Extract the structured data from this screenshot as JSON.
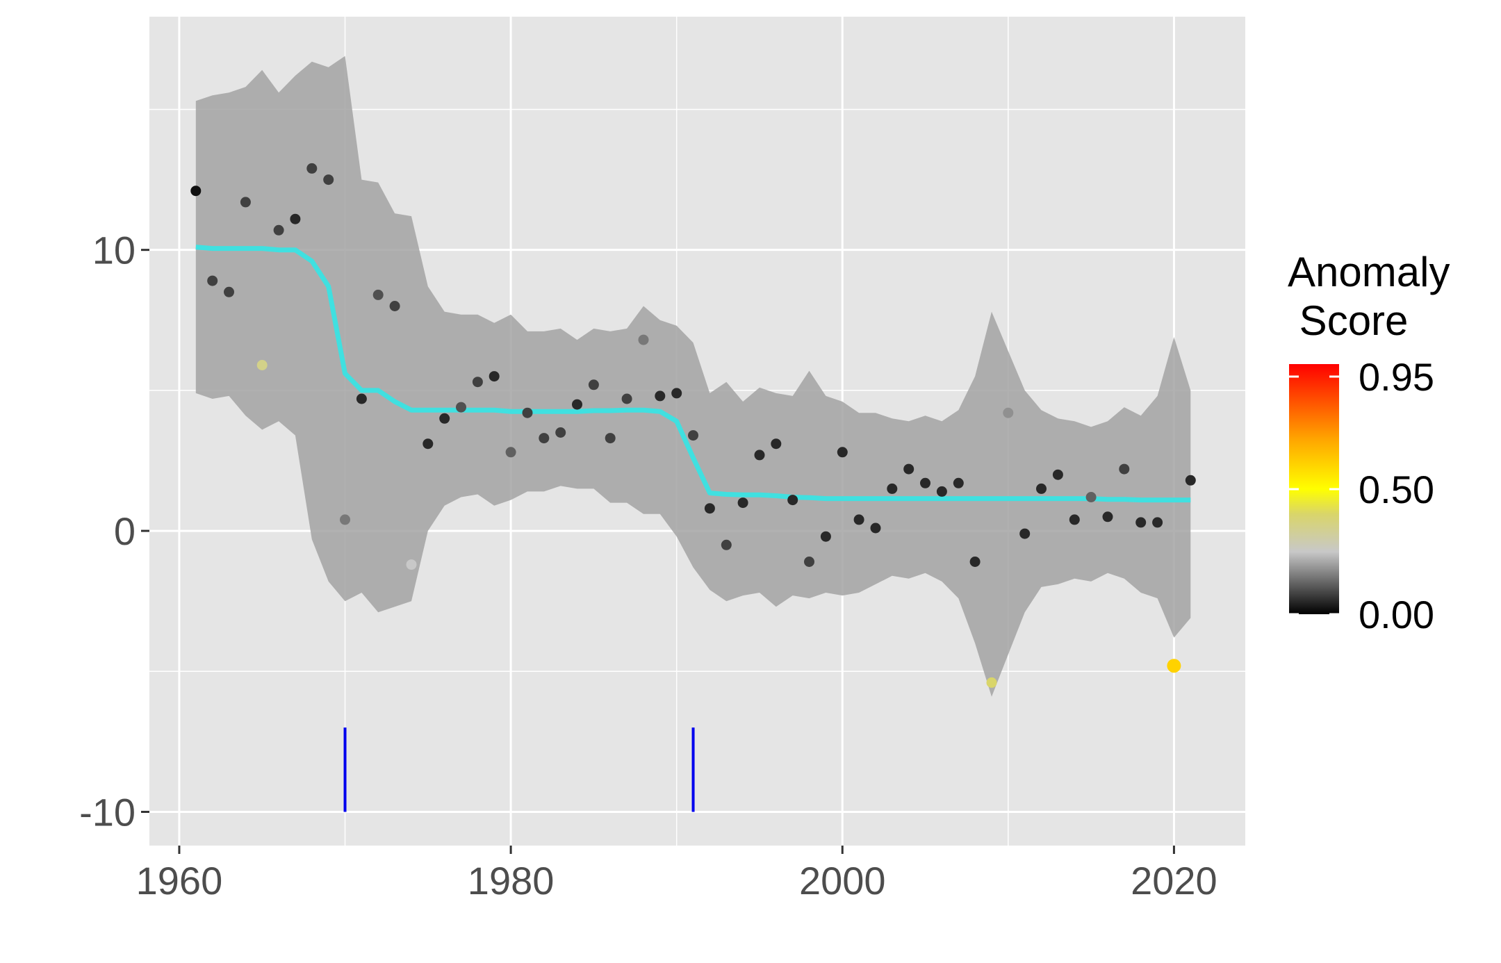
{
  "chart_data": {
    "type": "scatter",
    "title": "",
    "xlabel": "",
    "ylabel": "",
    "xlim": [
      1958.2,
      2024.3
    ],
    "ylim": [
      -11.2,
      18.3
    ],
    "x_ticks": [
      1960,
      1980,
      2000,
      2020
    ],
    "x_tick_labels": [
      "1960",
      "1980",
      "2000",
      "2020"
    ],
    "y_ticks": [
      -10,
      0,
      10
    ],
    "y_tick_labels": [
      "-10",
      "0",
      "10"
    ],
    "grid": true,
    "colors": {
      "panel": "#e5e5e5",
      "grid": "#ffffff",
      "band": "#a3a3a3",
      "trend": "#40e0e0",
      "changepoint": "#0000ee"
    },
    "points": [
      {
        "x": 1961,
        "y": 12.1,
        "score": 0.02
      },
      {
        "x": 1962,
        "y": 8.9,
        "score": 0.08
      },
      {
        "x": 1963,
        "y": 8.5,
        "score": 0.08
      },
      {
        "x": 1964,
        "y": 11.7,
        "score": 0.08
      },
      {
        "x": 1965,
        "y": 5.9,
        "score": 0.35
      },
      {
        "x": 1966,
        "y": 10.7,
        "score": 0.08
      },
      {
        "x": 1967,
        "y": 11.1,
        "score": 0.05
      },
      {
        "x": 1968,
        "y": 12.9,
        "score": 0.08
      },
      {
        "x": 1969,
        "y": 12.5,
        "score": 0.08
      },
      {
        "x": 1970,
        "y": 0.4,
        "score": 0.15
      },
      {
        "x": 1971,
        "y": 4.7,
        "score": 0.05
      },
      {
        "x": 1972,
        "y": 8.4,
        "score": 0.1
      },
      {
        "x": 1973,
        "y": 8.0,
        "score": 0.08
      },
      {
        "x": 1974,
        "y": -1.2,
        "score": 0.25
      },
      {
        "x": 1975,
        "y": 3.1,
        "score": 0.05
      },
      {
        "x": 1976,
        "y": 4.0,
        "score": 0.05
      },
      {
        "x": 1977,
        "y": 4.4,
        "score": 0.1
      },
      {
        "x": 1978,
        "y": 5.3,
        "score": 0.08
      },
      {
        "x": 1979,
        "y": 5.5,
        "score": 0.05
      },
      {
        "x": 1980,
        "y": 2.8,
        "score": 0.12
      },
      {
        "x": 1981,
        "y": 4.2,
        "score": 0.08
      },
      {
        "x": 1982,
        "y": 3.3,
        "score": 0.08
      },
      {
        "x": 1983,
        "y": 3.5,
        "score": 0.08
      },
      {
        "x": 1984,
        "y": 4.5,
        "score": 0.05
      },
      {
        "x": 1985,
        "y": 5.2,
        "score": 0.08
      },
      {
        "x": 1986,
        "y": 3.3,
        "score": 0.08
      },
      {
        "x": 1987,
        "y": 4.7,
        "score": 0.08
      },
      {
        "x": 1988,
        "y": 6.8,
        "score": 0.15
      },
      {
        "x": 1989,
        "y": 4.8,
        "score": 0.05
      },
      {
        "x": 1990,
        "y": 4.9,
        "score": 0.05
      },
      {
        "x": 1991,
        "y": 3.4,
        "score": 0.08
      },
      {
        "x": 1992,
        "y": 0.8,
        "score": 0.05
      },
      {
        "x": 1993,
        "y": -0.5,
        "score": 0.08
      },
      {
        "x": 1994,
        "y": 1.0,
        "score": 0.05
      },
      {
        "x": 1995,
        "y": 2.7,
        "score": 0.05
      },
      {
        "x": 1996,
        "y": 3.1,
        "score": 0.05
      },
      {
        "x": 1997,
        "y": 1.1,
        "score": 0.05
      },
      {
        "x": 1998,
        "y": -1.1,
        "score": 0.08
      },
      {
        "x": 1999,
        "y": -0.2,
        "score": 0.05
      },
      {
        "x": 2000,
        "y": 2.8,
        "score": 0.05
      },
      {
        "x": 2001,
        "y": 0.4,
        "score": 0.05
      },
      {
        "x": 2002,
        "y": 0.1,
        "score": 0.05
      },
      {
        "x": 2003,
        "y": 1.5,
        "score": 0.05
      },
      {
        "x": 2004,
        "y": 2.2,
        "score": 0.05
      },
      {
        "x": 2005,
        "y": 1.7,
        "score": 0.05
      },
      {
        "x": 2006,
        "y": 1.4,
        "score": 0.05
      },
      {
        "x": 2007,
        "y": 1.7,
        "score": 0.05
      },
      {
        "x": 2008,
        "y": -1.1,
        "score": 0.05
      },
      {
        "x": 2009,
        "y": -5.4,
        "score": 0.4
      },
      {
        "x": 2010,
        "y": 4.2,
        "score": 0.18
      },
      {
        "x": 2011,
        "y": -0.1,
        "score": 0.05
      },
      {
        "x": 2012,
        "y": 1.5,
        "score": 0.05
      },
      {
        "x": 2013,
        "y": 2.0,
        "score": 0.05
      },
      {
        "x": 2014,
        "y": 0.4,
        "score": 0.05
      },
      {
        "x": 2015,
        "y": 1.2,
        "score": 0.12
      },
      {
        "x": 2016,
        "y": 0.5,
        "score": 0.05
      },
      {
        "x": 2017,
        "y": 2.2,
        "score": 0.08
      },
      {
        "x": 2018,
        "y": 0.3,
        "score": 0.05
      },
      {
        "x": 2019,
        "y": 0.3,
        "score": 0.05
      },
      {
        "x": 2020,
        "y": -4.8,
        "score": 0.6
      },
      {
        "x": 2021,
        "y": 1.8,
        "score": 0.05
      }
    ],
    "trend": {
      "x": [
        1961,
        1962,
        1963,
        1964,
        1965,
        1966,
        1967,
        1968,
        1969,
        1970,
        1971,
        1972,
        1973,
        1974,
        1975,
        1976,
        1977,
        1978,
        1979,
        1980,
        1981,
        1982,
        1983,
        1984,
        1985,
        1986,
        1987,
        1988,
        1989,
        1990,
        1991,
        1992,
        1993,
        1994,
        1995,
        1996,
        1997,
        1998,
        1999,
        2000,
        2001,
        2002,
        2003,
        2004,
        2005,
        2006,
        2007,
        2008,
        2009,
        2010,
        2011,
        2012,
        2013,
        2014,
        2015,
        2016,
        2017,
        2018,
        2019,
        2020,
        2021
      ],
      "y": [
        10.1,
        10.05,
        10.05,
        10.05,
        10.05,
        10.0,
        10.0,
        9.6,
        8.7,
        5.6,
        5.0,
        5.0,
        4.6,
        4.3,
        4.3,
        4.3,
        4.3,
        4.3,
        4.3,
        4.25,
        4.25,
        4.25,
        4.25,
        4.25,
        4.28,
        4.28,
        4.3,
        4.3,
        4.25,
        3.9,
        2.6,
        1.35,
        1.3,
        1.28,
        1.28,
        1.25,
        1.2,
        1.18,
        1.15,
        1.15,
        1.15,
        1.15,
        1.15,
        1.15,
        1.15,
        1.15,
        1.15,
        1.15,
        1.15,
        1.15,
        1.15,
        1.15,
        1.15,
        1.15,
        1.15,
        1.12,
        1.12,
        1.1,
        1.1,
        1.1,
        1.1
      ]
    },
    "band": {
      "x": [
        1961,
        1962,
        1963,
        1964,
        1965,
        1966,
        1967,
        1968,
        1969,
        1970,
        1971,
        1972,
        1973,
        1974,
        1975,
        1976,
        1977,
        1978,
        1979,
        1980,
        1981,
        1982,
        1983,
        1984,
        1985,
        1986,
        1987,
        1988,
        1989,
        1990,
        1991,
        1992,
        1993,
        1994,
        1995,
        1996,
        1997,
        1998,
        1999,
        2000,
        2001,
        2002,
        2003,
        2004,
        2005,
        2006,
        2007,
        2008,
        2009,
        2010,
        2011,
        2012,
        2013,
        2014,
        2015,
        2016,
        2017,
        2018,
        2019,
        2020,
        2021
      ],
      "upper": [
        15.3,
        15.5,
        15.6,
        15.8,
        16.4,
        15.6,
        16.2,
        16.7,
        16.5,
        16.9,
        12.5,
        12.4,
        11.3,
        11.2,
        8.7,
        7.8,
        7.7,
        7.7,
        7.4,
        7.7,
        7.1,
        7.1,
        7.2,
        6.8,
        7.2,
        7.1,
        7.2,
        8.0,
        7.5,
        7.3,
        6.7,
        4.9,
        5.3,
        4.6,
        5.1,
        4.9,
        4.8,
        5.7,
        4.8,
        4.6,
        4.2,
        4.2,
        4.0,
        3.9,
        4.1,
        3.9,
        4.3,
        5.5,
        7.8,
        6.4,
        5.0,
        4.3,
        4.0,
        3.9,
        3.7,
        3.9,
        4.4,
        4.1,
        4.8,
        6.9,
        5.0
      ],
      "lower": [
        4.9,
        4.7,
        4.8,
        4.1,
        3.6,
        3.9,
        3.4,
        -0.3,
        -1.8,
        -2.5,
        -2.2,
        -2.9,
        -2.7,
        -2.5,
        0.0,
        0.9,
        1.2,
        1.3,
        0.9,
        1.1,
        1.4,
        1.4,
        1.6,
        1.5,
        1.5,
        1.0,
        1.0,
        0.6,
        0.6,
        -0.2,
        -1.3,
        -2.1,
        -2.5,
        -2.3,
        -2.2,
        -2.7,
        -2.3,
        -2.4,
        -2.2,
        -2.3,
        -2.2,
        -1.9,
        -1.6,
        -1.7,
        -1.5,
        -1.8,
        -2.4,
        -4.0,
        -5.9,
        -4.4,
        -2.9,
        -2.0,
        -1.9,
        -1.7,
        -1.8,
        -1.5,
        -1.7,
        -2.2,
        -2.4,
        -3.8,
        -3.1
      ]
    },
    "changepoints": [
      {
        "x": 1970,
        "y_from": -10,
        "y_to": -7
      },
      {
        "x": 1991,
        "y_from": -10,
        "y_to": -7
      }
    ],
    "legend": {
      "title_line1": "Anomaly",
      "title_line2": " Score",
      "placement": "right",
      "range": [
        0,
        1
      ],
      "breaks": [
        0.95,
        0.5,
        0.0
      ],
      "break_labels": [
        "0.95",
        "0.50",
        "0.00"
      ],
      "gradient": [
        {
          "value": 0.0,
          "color": "#000000"
        },
        {
          "value": 0.25,
          "color": "#c8c8c8"
        },
        {
          "value": 0.4,
          "color": "#d9d56a"
        },
        {
          "value": 0.5,
          "color": "#ffff00"
        },
        {
          "value": 0.7,
          "color": "#ffa500"
        },
        {
          "value": 1.0,
          "color": "#ff0000"
        }
      ]
    }
  }
}
